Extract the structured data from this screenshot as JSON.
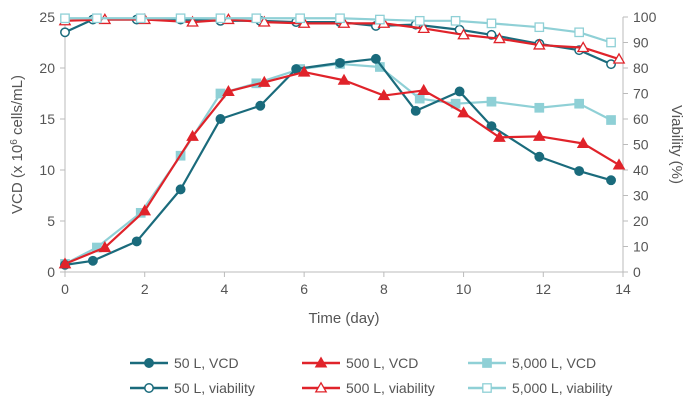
{
  "chart_data": {
    "type": "line",
    "title": "",
    "xlabel": "Time (day)",
    "ylabel_left": "VCD (x 10^6 cells/mL)",
    "ylabel_left_parts": [
      "VCD (x 10",
      "6",
      " cells/mL)"
    ],
    "ylabel_right": "Viability (%)",
    "xlim": [
      0,
      14
    ],
    "ylim_left": [
      0,
      25
    ],
    "ylim_right": [
      0,
      100
    ],
    "x_ticks": [
      0,
      2,
      4,
      6,
      8,
      10,
      12,
      14
    ],
    "y_left_ticks": [
      0,
      5,
      10,
      15,
      20,
      25
    ],
    "y_right_ticks": [
      0,
      10,
      20,
      30,
      40,
      50,
      60,
      70,
      80,
      90,
      100
    ],
    "grid": false,
    "legend_position": "bottom",
    "colors": {
      "50 L": "#1a6b7c",
      "500 L": "#e0232a",
      "5,000 L": "#8fd0d6",
      "axis": "#bbbbbb",
      "text": "#555555"
    },
    "series": [
      {
        "name": "50 L, VCD",
        "axis": "left",
        "color": "#1a6b7c",
        "marker": "circle",
        "filled": true,
        "x": [
          0,
          0.7,
          1.8,
          2.9,
          3.9,
          4.9,
          5.8,
          6.9,
          7.8,
          8.8,
          9.9,
          10.7,
          11.9,
          12.9,
          13.7
        ],
        "y": [
          0.7,
          1.1,
          3.0,
          8.1,
          15.0,
          16.3,
          19.9,
          20.5,
          20.9,
          15.8,
          17.7,
          14.3,
          11.3,
          9.9,
          9.0
        ]
      },
      {
        "name": "500 L, VCD",
        "axis": "left",
        "color": "#e0232a",
        "marker": "triangle",
        "filled": true,
        "x": [
          0,
          1.0,
          2.0,
          3.2,
          4.1,
          5.0,
          6.0,
          7.0,
          8.0,
          9.0,
          10.0,
          10.9,
          11.9,
          13.0,
          13.9
        ],
        "y": [
          0.8,
          2.4,
          6.0,
          13.3,
          17.7,
          18.6,
          19.6,
          18.8,
          17.3,
          17.8,
          15.6,
          13.2,
          13.3,
          12.6,
          10.5
        ]
      },
      {
        "name": "5,000 L, VCD",
        "axis": "left",
        "color": "#8fd0d6",
        "marker": "square",
        "filled": true,
        "x": [
          0,
          0.8,
          1.9,
          2.9,
          3.9,
          4.8,
          5.9,
          6.9,
          7.9,
          8.9,
          9.8,
          10.7,
          11.9,
          12.9,
          13.7
        ],
        "y": [
          0.8,
          2.4,
          5.8,
          11.4,
          17.5,
          18.5,
          19.9,
          20.4,
          20.1,
          17.0,
          16.5,
          16.7,
          16.1,
          16.5,
          14.9
        ]
      },
      {
        "name": "50 L, viability",
        "axis": "right",
        "color": "#1a6b7c",
        "marker": "circle",
        "filled": false,
        "x": [
          0,
          0.7,
          1.8,
          2.9,
          3.9,
          4.9,
          5.8,
          6.9,
          7.8,
          8.8,
          9.9,
          10.7,
          11.9,
          12.9,
          13.7
        ],
        "y": [
          94,
          99,
          99,
          99,
          98.5,
          98.5,
          98,
          98,
          96.5,
          97,
          95,
          93,
          89.5,
          87,
          81.5
        ]
      },
      {
        "name": "500 L, viability",
        "axis": "right",
        "color": "#e0232a",
        "marker": "triangle",
        "filled": false,
        "x": [
          0,
          1.0,
          2.0,
          3.2,
          4.1,
          5.0,
          6.0,
          7.0,
          8.0,
          9.0,
          10.0,
          10.9,
          11.9,
          13.0,
          13.9
        ],
        "y": [
          98.5,
          99,
          99,
          98,
          99,
          98,
          97.5,
          97.5,
          97.5,
          95.5,
          93,
          91.5,
          89,
          88,
          83.5
        ]
      },
      {
        "name": "5,000 L, viability",
        "axis": "right",
        "color": "#8fd0d6",
        "marker": "square",
        "filled": false,
        "x": [
          0,
          0.8,
          1.9,
          2.9,
          3.9,
          4.8,
          5.9,
          6.9,
          7.9,
          8.9,
          9.8,
          10.7,
          11.9,
          12.9,
          13.7
        ],
        "y": [
          99.5,
          99.5,
          99.5,
          99.5,
          99.5,
          99.5,
          99.5,
          99.5,
          99,
          98.5,
          98.5,
          97.5,
          96,
          94,
          90
        ]
      }
    ]
  }
}
